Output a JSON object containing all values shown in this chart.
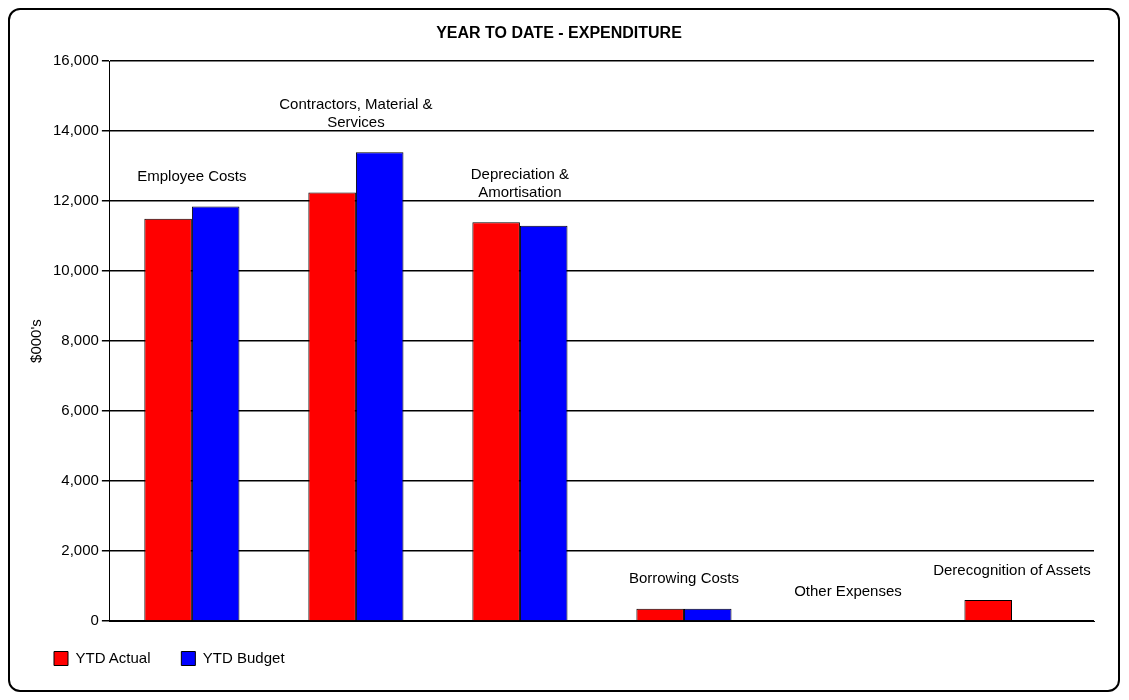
{
  "chart_data": {
    "type": "bar",
    "title": "YEAR TO DATE - EXPENDITURE",
    "ylabel": "$000's",
    "categories": [
      "Employee Costs",
      "Contractors, Material & Services",
      "Depreciation & Amortisation",
      "Borrowing Costs",
      "Other Expenses",
      "Derecognition of Assets"
    ],
    "series": [
      {
        "name": "YTD Actual",
        "color": "#ff0000",
        "values": [
          11500,
          12250,
          11400,
          350,
          0,
          600
        ]
      },
      {
        "name": "YTD Budget",
        "color": "#0000ff",
        "values": [
          11850,
          13400,
          11300,
          350,
          0,
          0
        ]
      }
    ],
    "ylim": [
      0,
      16000
    ],
    "yticks": [
      0,
      {
        "value": 2000,
        "label": "2,000"
      },
      {
        "value": 4000,
        "label": "4,000"
      },
      {
        "value": 6000,
        "label": "6,000"
      },
      {
        "value": 8000,
        "label": "8,000"
      },
      {
        "value": 10000,
        "label": "10,000"
      },
      {
        "value": 12000,
        "label": "12,000"
      },
      {
        "value": 14000,
        "label": "14,000"
      },
      {
        "value": 16000,
        "label": "16,000"
      }
    ],
    "grid": "y",
    "legend": "bottom left"
  }
}
